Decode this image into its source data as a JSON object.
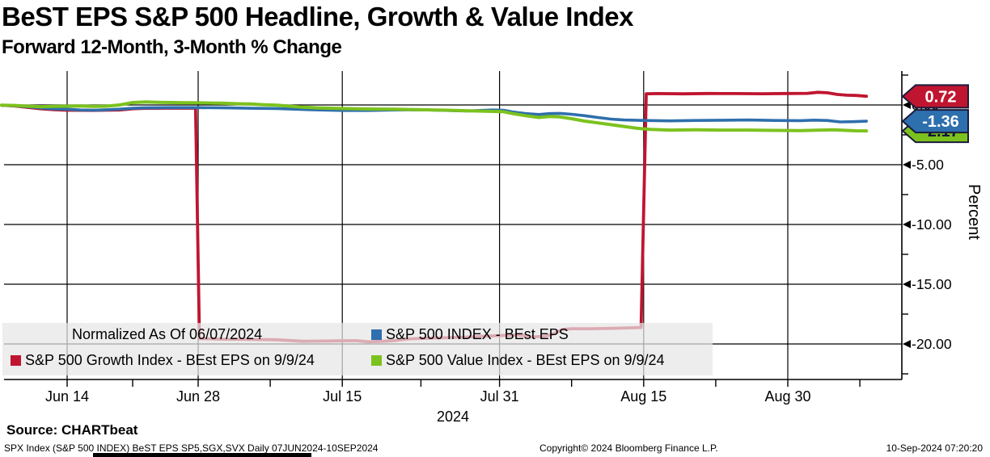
{
  "header": {
    "title": "BeST EPS S&P 500 Headline, Growth & Value Index",
    "subtitle": "Forward 12-Month, 3-Month % Change"
  },
  "legend": {
    "normalized_note": "Normalized As Of 06/07/2024",
    "items": [
      {
        "label": "S&P 500 INDEX - BEst EPS",
        "color": "#2e6fad"
      },
      {
        "label": "S&P 500 Growth Index - BEst EPS on 9/9/24",
        "color": "#c01530"
      },
      {
        "label": "S&P 500 Value Index - BEst EPS on 9/9/24",
        "color": "#7cc21e"
      }
    ]
  },
  "y_axis_title": "Percent",
  "x_axis_year": "2024",
  "source_line": "Source: CHARTbeat",
  "footer": {
    "left": "SPX Index (S&P 500 INDEX) BeST EPS SP5,SGX,SVX  Daily 07JUN2024-10SEP2024",
    "center": "Copyright© 2024 Bloomberg Finance L.P.",
    "right": "10-Sep-2024 07:20:20"
  },
  "chart_data": {
    "type": "line",
    "title": "BeST EPS S&P 500 Headline, Growth & Value Index",
    "subtitle": "Forward 12-Month, 3-Month % Change",
    "ylabel": "Percent",
    "x_unit": "weekday index from 07JUN2024 (0 = Jun 7, 2024)",
    "date_range": "07JUN2024-10SEP2024",
    "ylim": [
      -23,
      2.9
    ],
    "grid": true,
    "x_ticks": [
      {
        "label": "Jun 14",
        "i": 5
      },
      {
        "label": "Jun 28",
        "i": 15
      },
      {
        "label": "Jul 15",
        "i": 26
      },
      {
        "label": "Jul 31",
        "i": 38
      },
      {
        "label": "Aug 15",
        "i": 49
      },
      {
        "label": "Aug 30",
        "i": 60
      }
    ],
    "x_minor_ticks": [
      10,
      20.5,
      32,
      43.5,
      54.5,
      65.5
    ],
    "y_ticks": [
      {
        "label": "0.00",
        "v": 0
      },
      {
        "label": "-5.00",
        "v": -5
      },
      {
        "label": "-10.00",
        "v": -10
      },
      {
        "label": "-15.00",
        "v": -15
      },
      {
        "label": "-20.00",
        "v": -20
      }
    ],
    "y_minor_ticks": [
      2.5,
      -2.5,
      -7.5,
      -12.5,
      -17.5,
      -22.5
    ],
    "badges": [
      {
        "label": "-2.17",
        "v": -2.17,
        "fill": "#7cc21e",
        "text_color": "#14143c"
      },
      {
        "label": "-1.36",
        "v": -1.36,
        "fill": "#2e6fad",
        "text_color": "#ffffff"
      },
      {
        "label": "0.72",
        "v": 0.72,
        "fill": "#c01530",
        "text_color": "#ffffff"
      }
    ],
    "series": [
      {
        "name": "S&P 500 Growth Index - BEst EPS on 9/9/24",
        "color": "#c01530",
        "width": 3.8,
        "points": [
          [
            0,
            -0.02
          ],
          [
            1,
            -0.08
          ],
          [
            2,
            -0.2
          ],
          [
            3,
            -0.32
          ],
          [
            4,
            -0.4
          ],
          [
            5,
            -0.44
          ],
          [
            7,
            -0.45
          ],
          [
            9,
            -0.42
          ],
          [
            10,
            -0.32
          ],
          [
            11,
            -0.28
          ],
          [
            13,
            -0.27
          ],
          [
            14.8,
            -0.27
          ],
          [
            15.1,
            -19.55
          ],
          [
            17,
            -19.6
          ],
          [
            19,
            -19.62
          ],
          [
            21,
            -19.65
          ],
          [
            23,
            -19.78
          ],
          [
            25,
            -19.75
          ],
          [
            27,
            -19.72
          ],
          [
            28,
            -19.82
          ],
          [
            29,
            -19.78
          ],
          [
            30,
            -19.72
          ],
          [
            31,
            -19.58
          ],
          [
            33,
            -19.5
          ],
          [
            35,
            -19.45
          ],
          [
            37,
            -19.35
          ],
          [
            38.5,
            -19.28
          ],
          [
            39.5,
            -19.25
          ],
          [
            40.5,
            -19.42
          ],
          [
            41.5,
            -19.35
          ],
          [
            42,
            -19.2
          ],
          [
            42.8,
            -18.8
          ],
          [
            43.5,
            -18.72
          ],
          [
            45,
            -18.72
          ],
          [
            47,
            -18.68
          ],
          [
            48.8,
            -18.62
          ],
          [
            49.2,
            0.93
          ],
          [
            50,
            0.95
          ],
          [
            52,
            0.93
          ],
          [
            54,
            0.96
          ],
          [
            56,
            0.95
          ],
          [
            58,
            0.94
          ],
          [
            60,
            0.96
          ],
          [
            61.5,
            0.97
          ],
          [
            62.3,
            1.06
          ],
          [
            63,
            1.02
          ],
          [
            63.8,
            0.88
          ],
          [
            64.5,
            0.82
          ],
          [
            65.2,
            0.8
          ],
          [
            66,
            0.73
          ]
        ]
      },
      {
        "name": "S&P 500 INDEX - BEst EPS",
        "color": "#2e6fad",
        "width": 3.6,
        "points": [
          [
            0,
            -0.02
          ],
          [
            1,
            -0.06
          ],
          [
            2,
            -0.15
          ],
          [
            3,
            -0.25
          ],
          [
            4,
            -0.33
          ],
          [
            5,
            -0.36
          ],
          [
            6,
            -0.42
          ],
          [
            7,
            -0.44
          ],
          [
            8,
            -0.4
          ],
          [
            9,
            -0.35
          ],
          [
            10,
            -0.28
          ],
          [
            11,
            -0.24
          ],
          [
            13,
            -0.22
          ],
          [
            15,
            -0.22
          ],
          [
            17,
            -0.24
          ],
          [
            19,
            -0.28
          ],
          [
            21,
            -0.3
          ],
          [
            23,
            -0.38
          ],
          [
            25,
            -0.44
          ],
          [
            26,
            -0.46
          ],
          [
            28,
            -0.46
          ],
          [
            30,
            -0.42
          ],
          [
            32,
            -0.4
          ],
          [
            34,
            -0.46
          ],
          [
            35.5,
            -0.5
          ],
          [
            36.5,
            -0.46
          ],
          [
            37.5,
            -0.42
          ],
          [
            38.3,
            -0.44
          ],
          [
            39,
            -0.58
          ],
          [
            40,
            -0.72
          ],
          [
            41,
            -0.8
          ],
          [
            41.8,
            -0.72
          ],
          [
            42.6,
            -0.7
          ],
          [
            43.5,
            -0.78
          ],
          [
            44.5,
            -0.9
          ],
          [
            45.5,
            -1.05
          ],
          [
            46.5,
            -1.18
          ],
          [
            47.5,
            -1.26
          ],
          [
            49,
            -1.3
          ],
          [
            51,
            -1.33
          ],
          [
            53,
            -1.3
          ],
          [
            55,
            -1.28
          ],
          [
            57,
            -1.26
          ],
          [
            59,
            -1.3
          ],
          [
            61,
            -1.31
          ],
          [
            62,
            -1.27
          ],
          [
            63,
            -1.3
          ],
          [
            64,
            -1.42
          ],
          [
            65,
            -1.4
          ],
          [
            66,
            -1.36
          ]
        ]
      },
      {
        "name": "S&P 500 Value Index - BEst EPS on 9/9/24",
        "color": "#7cc21e",
        "width": 4,
        "points": [
          [
            0,
            -0.02
          ],
          [
            1,
            -0.04
          ],
          [
            2,
            -0.1
          ],
          [
            3,
            -0.14
          ],
          [
            4,
            -0.12
          ],
          [
            5,
            -0.1
          ],
          [
            6,
            -0.08
          ],
          [
            7,
            -0.12
          ],
          [
            8,
            -0.1
          ],
          [
            9,
            0.0
          ],
          [
            10,
            0.2
          ],
          [
            11,
            0.26
          ],
          [
            12,
            0.22
          ],
          [
            13,
            0.2
          ],
          [
            14,
            0.18
          ],
          [
            15,
            0.18
          ],
          [
            16,
            0.16
          ],
          [
            17,
            0.14
          ],
          [
            18,
            0.1
          ],
          [
            19,
            0.08
          ],
          [
            20,
            0.02
          ],
          [
            21,
            -0.02
          ],
          [
            22,
            -0.1
          ],
          [
            23,
            -0.18
          ],
          [
            24,
            -0.24
          ],
          [
            26,
            -0.3
          ],
          [
            28,
            -0.34
          ],
          [
            30,
            -0.36
          ],
          [
            32,
            -0.4
          ],
          [
            34,
            -0.44
          ],
          [
            36,
            -0.5
          ],
          [
            37.5,
            -0.54
          ],
          [
            38.3,
            -0.56
          ],
          [
            39,
            -0.72
          ],
          [
            40,
            -0.9
          ],
          [
            41,
            -1.05
          ],
          [
            41.8,
            -0.96
          ],
          [
            42.6,
            -1.0
          ],
          [
            43.5,
            -1.15
          ],
          [
            44.5,
            -1.35
          ],
          [
            45.5,
            -1.5
          ],
          [
            46.5,
            -1.65
          ],
          [
            47.5,
            -1.8
          ],
          [
            48.5,
            -1.95
          ],
          [
            49.5,
            -2.05
          ],
          [
            51,
            -2.1
          ],
          [
            53,
            -2.08
          ],
          [
            55,
            -2.1
          ],
          [
            57,
            -2.1
          ],
          [
            59,
            -2.13
          ],
          [
            61,
            -2.15
          ],
          [
            62.5,
            -2.1
          ],
          [
            63.5,
            -2.08
          ],
          [
            64.5,
            -2.13
          ],
          [
            65.2,
            -2.16
          ],
          [
            66,
            -2.17
          ]
        ]
      }
    ]
  }
}
